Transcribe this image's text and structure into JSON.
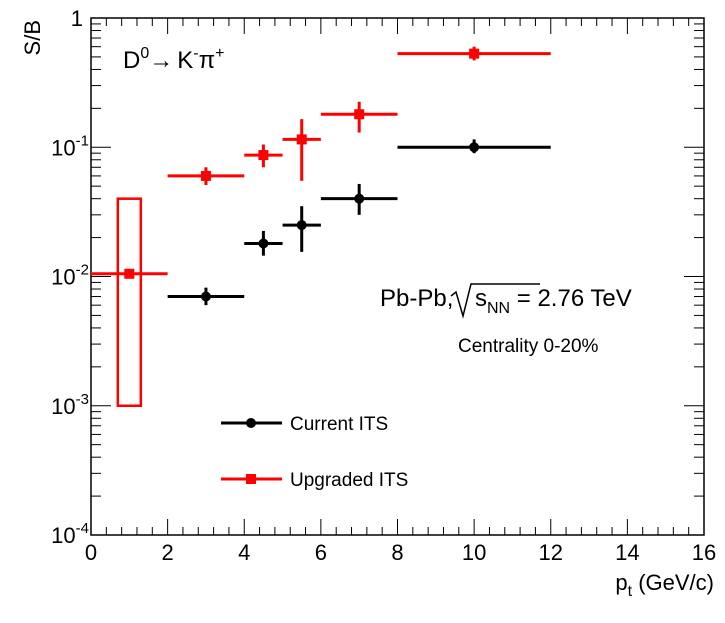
{
  "chart_data": {
    "type": "scatter",
    "title": "",
    "xlabel": "p_t (GeV/c)",
    "ylabel": "S/B",
    "x_scale": "linear",
    "y_scale": "log",
    "xlim": [
      0,
      16
    ],
    "ylim": [
      0.0001,
      1
    ],
    "x_ticks": [
      "0",
      "2",
      "4",
      "6",
      "8",
      "10",
      "12",
      "14",
      "16"
    ],
    "y_ticks": [
      {
        "base": "10",
        "exp": "-4"
      },
      {
        "base": "10",
        "exp": "-3"
      },
      {
        "base": "10",
        "exp": "-2"
      },
      {
        "base": "10",
        "exp": "-1"
      },
      {
        "base": "1",
        "exp": ""
      }
    ],
    "grid": false,
    "legend_position": "center-left",
    "series": [
      {
        "name": "Current ITS",
        "color": "#000000",
        "marker": "circle",
        "points": [
          {
            "x": 3.0,
            "xlo": 2.0,
            "xhi": 4.0,
            "y": 0.007,
            "ylo": 0.006,
            "yhi": 0.0082
          },
          {
            "x": 4.5,
            "xlo": 4.0,
            "xhi": 5.0,
            "y": 0.018,
            "ylo": 0.0145,
            "yhi": 0.0225
          },
          {
            "x": 5.5,
            "xlo": 5.0,
            "xhi": 6.0,
            "y": 0.025,
            "ylo": 0.0155,
            "yhi": 0.035
          },
          {
            "x": 7.0,
            "xlo": 6.0,
            "xhi": 8.0,
            "y": 0.04,
            "ylo": 0.03,
            "yhi": 0.052
          },
          {
            "x": 10.0,
            "xlo": 8.0,
            "xhi": 12.0,
            "y": 0.1,
            "ylo": 0.09,
            "yhi": 0.115
          }
        ]
      },
      {
        "name": "Upgraded ITS",
        "color": "#ff0000",
        "marker": "square",
        "points": [
          {
            "x": 1.0,
            "xlo": 0.0,
            "xhi": 2.0,
            "y": 0.0105,
            "ylo": 0.0105,
            "yhi": 0.0105,
            "box": {
              "xlo": 0.7,
              "xhi": 1.3,
              "ylo": 0.001,
              "yhi": 0.04
            }
          },
          {
            "x": 3.0,
            "xlo": 2.0,
            "xhi": 4.0,
            "y": 0.06,
            "ylo": 0.051,
            "yhi": 0.07
          },
          {
            "x": 4.5,
            "xlo": 4.0,
            "xhi": 5.0,
            "y": 0.087,
            "ylo": 0.07,
            "yhi": 0.105
          },
          {
            "x": 5.5,
            "xlo": 5.0,
            "xhi": 6.0,
            "y": 0.115,
            "ylo": 0.055,
            "yhi": 0.165
          },
          {
            "x": 7.0,
            "xlo": 6.0,
            "xhi": 8.0,
            "y": 0.18,
            "ylo": 0.13,
            "yhi": 0.225
          },
          {
            "x": 10.0,
            "xlo": 8.0,
            "xhi": 12.0,
            "y": 0.53,
            "ylo": 0.47,
            "yhi": 0.6
          }
        ]
      }
    ],
    "annotations": {
      "decay": {
        "d": "D",
        "d_sup": "0",
        "arrow": "→",
        "k": "K",
        "k_sup": "-",
        "pi": "π",
        "pi_sup": "+"
      },
      "collision": {
        "prefix": "Pb-Pb,",
        "s": "s",
        "s_sub": "NN",
        "suffix": " = 2.76 TeV"
      },
      "centrality": "Centrality 0-20%"
    }
  }
}
